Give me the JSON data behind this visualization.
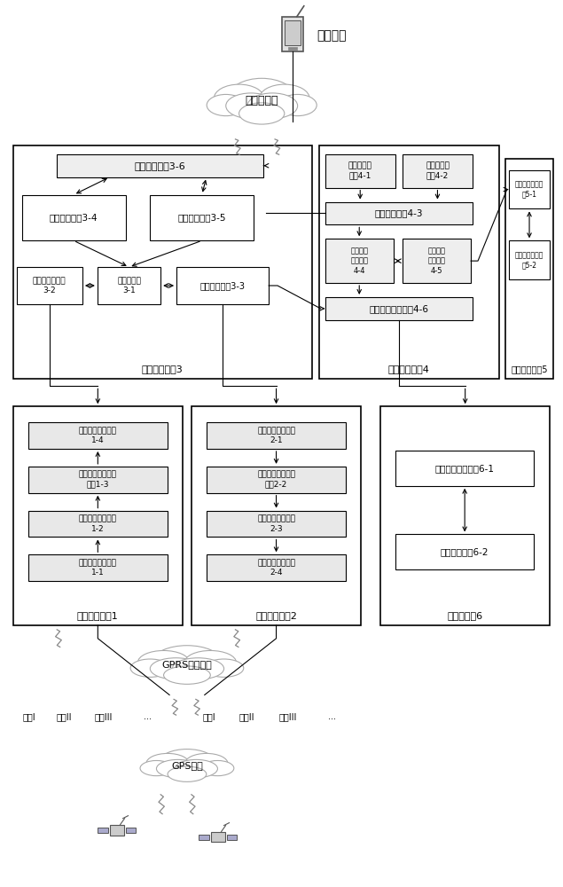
{
  "bg_color": "#ffffff",
  "phone_label": "智能手机",
  "cloud1_label": "移动互联网",
  "cloud2_label": "GPRS无线网络",
  "cloud3_label": "GPS网络",
  "module3_label": "数据中心模块3",
  "module4_label": "路由中心模块4",
  "module5_label": "业务中心模块5",
  "module1_label": "前置接收模块1",
  "module2_label": "前置发送模块2",
  "module6_label": "数据库模块6",
  "m36": "路由接口模块3-6",
  "m34": "车主信息模块3-4",
  "m35": "车辆信息模块3-5",
  "m32": "前置机接口模块\n3-2",
  "m31": "主控制模块\n3-1",
  "m33": "数据存取模块3-3",
  "m41": "监控端发送\n模块4-1",
  "m42": "监控端接收\n模块4-2",
  "m43": "监控鉴权模块4-3",
  "m44": "业务转发\n控制模块\n4-4",
  "m45": "业务中心\n接口模块\n4-5",
  "m46": "数据中心接口模块4-6",
  "m51": "路由中心接口模\n块5-1",
  "m52": "业务指令转换模\n块5-2",
  "m14": "上行数据发送模块\n1-4",
  "m13": "上行数据协议解析\n模块1-3",
  "m12": "上行数据解码模块\n1-2",
  "m11": "终端数据接收模块\n1-1",
  "m21": "下行数据接收模块\n2-1",
  "m22": "下行数据协议解析\n模块2-2",
  "m23": "下行数据编码模块\n2-3",
  "m24": "终端数据发送模块\n2-4",
  "m61": "数据存取进程模块6-1",
  "m62": "数据储存模块6-2",
  "terminals": [
    "终端I",
    "终端II",
    "终端III",
    "...",
    "终端I",
    "终端II",
    "终端III",
    "..."
  ]
}
